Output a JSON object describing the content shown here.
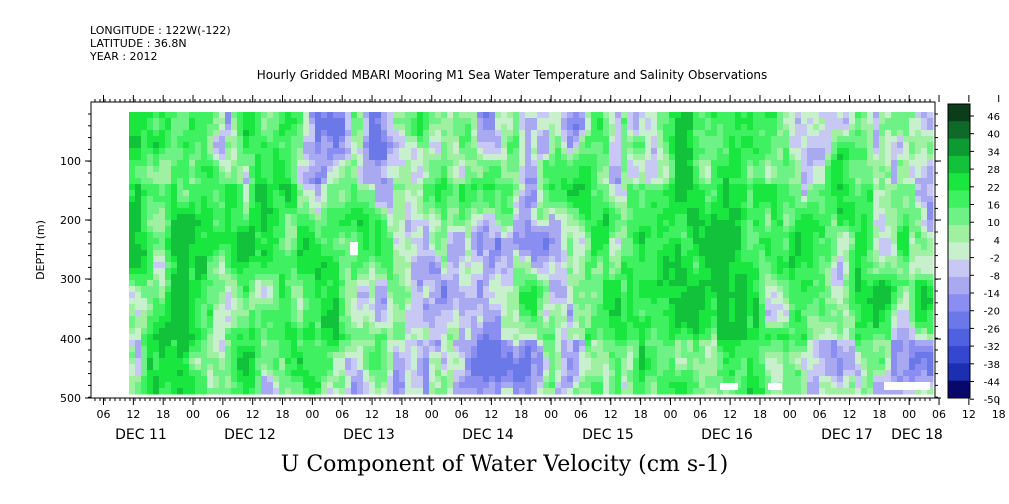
{
  "header": {
    "longitude": "LONGITUDE : 122W(-122)",
    "latitude": "LATITUDE : 36.8N",
    "year": "YEAR : 2012"
  },
  "chart_data": {
    "type": "heatmap",
    "title": "Hourly Gridded MBARI Mooring M1 Sea Water Temperature and Salinity Observations",
    "bottom_title": "U Component of Water Velocity (cm s-1)",
    "ylabel": "DEPTH (m)",
    "ylim": [
      500,
      0
    ],
    "y_ticks": [
      "100",
      "200",
      "300",
      "400",
      "500"
    ],
    "x_hour_ticks": [
      "06",
      "12",
      "18",
      "00",
      "06",
      "12",
      "18",
      "00",
      "06",
      "12",
      "18",
      "00",
      "06",
      "12",
      "18",
      "00",
      "06",
      "12",
      "18",
      "00",
      "06",
      "12",
      "18",
      "00",
      "06",
      "12",
      "18",
      "00",
      "06",
      "12",
      "18",
      "00"
    ],
    "x_day_labels": [
      "DEC 11",
      "DEC 12",
      "DEC 13",
      "DEC 14",
      "DEC 15",
      "DEC 16",
      "DEC 17",
      "DEC 18"
    ],
    "colorbar_levels": [
      "46",
      "40",
      "34",
      "28",
      "22",
      "16",
      "10",
      "4",
      "-2",
      "-8",
      "-14",
      "-20",
      "-26",
      "-32",
      "-38",
      "-44",
      "-50"
    ],
    "colors": {
      "dark_green": "#0b3d1a",
      "green": "#19e63f",
      "light_green": "#9ff0a0",
      "light_blue": "#a9a9f2",
      "blue": "#4f60e0",
      "dark_blue": "#08086b"
    },
    "grid": false
  }
}
